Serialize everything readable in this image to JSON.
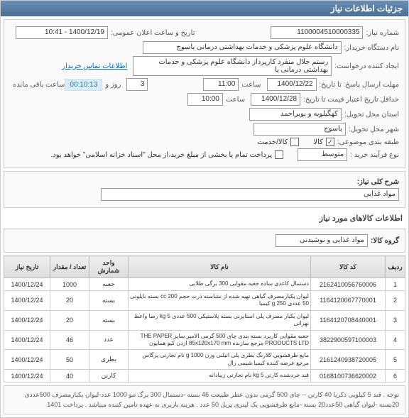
{
  "header": {
    "title": "جزئیات اطلاعات نیاز"
  },
  "form": {
    "need_num_label": "شماره نیاز:",
    "need_num": "1100004510000335",
    "announce_label": "تاریخ و ساعت اعلان عمومی:",
    "announce_val": "1400/12/19 - 10:41",
    "buyer_label": "نام دستگاه خریدار:",
    "buyer_val": "دانشگاه علوم پزشکی و خدمات بهداشتی درمانی یاسوج",
    "creator_label": "ایجاد کننده درخواست:",
    "creator_val": "رستم جلال منفرد کارپرداز دانشگاه علوم پزشکی و خدمات بهداشتی درمانی یا",
    "contact_link": "اطلاعات تماس خریدار",
    "deadline_label": "مهلت ارسال پاسخ: تا تاریخ:",
    "deadline_date": "1400/12/22",
    "time_label": "ساعت",
    "deadline_time": "11:00",
    "countdown": "00:10:13",
    "day_label": "روز و",
    "day_val": "3",
    "remain_label": "ساعت باقی مانده",
    "credit_label": "حداقل تاریخ اعتبار قیمت تا تاریخ:",
    "credit_date": "1400/12/28",
    "credit_time": "10:00",
    "province_label": "استان محل تحویل:",
    "province_val": "کهگیلویه و بویراحمد",
    "city_label": "شهر محل تحویل:",
    "city_val": "یاسوج",
    "category_label": "طبقه بندی موضوعی:",
    "cat_kala": "کالا",
    "cat_service": "کالا/خدمت",
    "process_label": "نوع فرآیند خرید :",
    "process_val": "متوسط",
    "payment_note": "پرداخت تمام یا بخشی از مبلغ خرید،از محل \"اسناد خزانه اسلامی\" خواهد بود."
  },
  "desc": {
    "label": "شرح کلی نیاز:",
    "val": "مواد غذایی"
  },
  "items_header": "اطلاعات کالاهای مورد نیاز",
  "group": {
    "label": "گروه کالا:",
    "val": "مواد غذایی و نوشیدنی"
  },
  "table": {
    "cols": [
      "ردیف",
      "کد کالا",
      "نام کالا",
      "واحد شمارش",
      "تعداد / مقدار",
      "تاریخ نیاز"
    ],
    "rows": [
      {
        "n": "1",
        "code": "2162410056760006",
        "name": "دستمال کاغذی ساده جعبه مقوایی 300 برگی طلایی",
        "unit": "جعبه",
        "qty": "1000",
        "date": "1400/12/24"
      },
      {
        "n": "2",
        "code": "1164120067770001",
        "name": "لیوان یکبارمصرف گیاهی تهیه شده از نشاسته ذرت حجم 200 cc بسته نایلونی 50 عددی 250 g کیمیا",
        "unit": "بسته",
        "qty": "20",
        "date": "1400/12/24"
      },
      {
        "n": "3",
        "code": "1164120708440001",
        "name": "لیوان یکبار مصرف پلی استایرنی بسته پلاستیکی 500 عددی 5 kg رضا واعظ تهرانی",
        "unit": "بسته",
        "qty": "20",
        "date": "1400/12/24"
      },
      {
        "n": "4",
        "code": "3822900597100003",
        "name": "جعبه مقوایی کاربرد بسته بندی چای 500 گرمی الامیر سایز THE PAPER PRODUCTS LTD مرجع سازنده 85x120x170 mm اردن کیو همایون",
        "unit": "عدد",
        "qty": "46",
        "date": "1400/12/24"
      },
      {
        "n": "5",
        "code": "2161240938720005",
        "name": "مایع ظرفشویی کلارنگ بطری پلی اتیلنی وزن 1000 g نام تجارتی پرگاس مرجع عرضه کننده کیمیا شیمی زال",
        "unit": "بطری",
        "qty": "50",
        "date": "1400/12/24"
      },
      {
        "n": "6",
        "code": "0168100736620002",
        "name": "قند خردشده کارتن 5 kg نام تجارتی زیبادانه",
        "unit": "کارتن",
        "qty": "40",
        "date": "1400/12/24"
      }
    ]
  },
  "footer_note": "توجه . قند 5 کیلویی ذکریا 40 کارتن -- چای 500 گرمی بدون عطر طبیعت 46 بسته -دستمال 300 برگ تنو 1000 عدد-لیوان یکبارمصرف 500عددی 20بسته -لیوان گیاهی 50عدد20 بسته -مایع ظرفشویی یک لیتری پریل 50 عدد . هزینه باربری به عهده تامین کننده میباشد . پرداخت 1401"
}
